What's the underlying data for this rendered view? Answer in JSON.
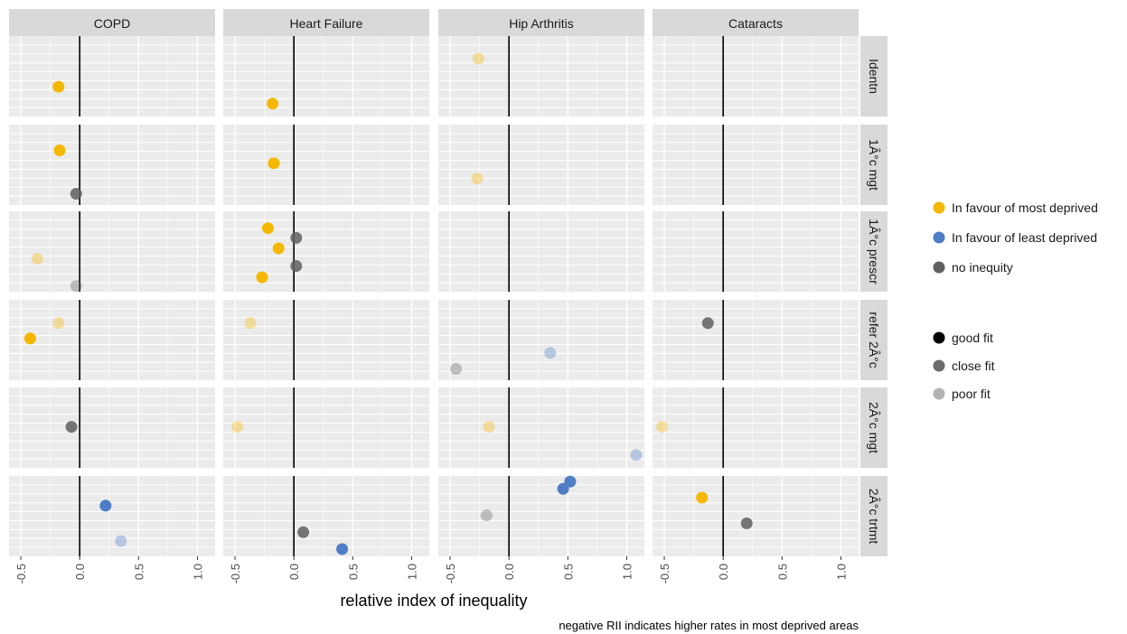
{
  "colors": {
    "panel_bg": "#ebebeb",
    "strip_bg": "#d9d9d9",
    "grid_major": "#ffffff",
    "zero_line": "#000000",
    "favour_most": "#f5b800",
    "favour_least": "#4f7dc6",
    "no_inequity": "#5f5f5f"
  },
  "chart_data": {
    "type": "scatter",
    "xlabel": "relative index of inequality",
    "caption": "negative RII indicates higher rates in most deprived areas",
    "x_ticks": [
      "-0.5",
      "0.0",
      "0.5",
      "1.0"
    ],
    "x_tick_values": [
      -0.5,
      0.0,
      0.5,
      1.0
    ],
    "xlim": [
      -0.6,
      1.15
    ],
    "reference_line_x": 0,
    "grid": true,
    "columns": [
      "COPD",
      "Heart Failure",
      "Hip Arthritis",
      "Cataracts"
    ],
    "rows": [
      "Identn",
      "1Â°c mgt",
      "1Â°c prescr",
      "refer 2Â°c",
      "2Â°c mgt",
      "2Â°c trtmt"
    ],
    "legend": {
      "placement": "right",
      "color_entries": [
        {
          "key": "most",
          "label": "In favour of most deprived"
        },
        {
          "key": "least",
          "label": "In favour of least deprived"
        },
        {
          "key": "none",
          "label": "no inequity"
        }
      ],
      "fit_entries": [
        {
          "key": "good",
          "label": "good fit"
        },
        {
          "key": "close",
          "label": "close fit"
        },
        {
          "key": "poor",
          "label": "poor fit"
        }
      ]
    },
    "fit_alpha": {
      "good": 1.0,
      "close": 0.85,
      "poor": 0.35
    },
    "points": [
      {
        "col": 0,
        "row": 0,
        "x": -0.18,
        "y": 0.63,
        "group": "most",
        "fit": "good"
      },
      {
        "col": 1,
        "row": 0,
        "x": -0.18,
        "y": 0.84,
        "group": "most",
        "fit": "good"
      },
      {
        "col": 2,
        "row": 0,
        "x": -0.26,
        "y": 0.28,
        "group": "most",
        "fit": "poor"
      },
      {
        "col": 0,
        "row": 1,
        "x": -0.17,
        "y": 0.32,
        "group": "most",
        "fit": "good"
      },
      {
        "col": 0,
        "row": 1,
        "x": -0.03,
        "y": 0.86,
        "group": "none",
        "fit": "close"
      },
      {
        "col": 1,
        "row": 1,
        "x": -0.17,
        "y": 0.48,
        "group": "most",
        "fit": "good"
      },
      {
        "col": 2,
        "row": 1,
        "x": -0.27,
        "y": 0.67,
        "group": "most",
        "fit": "poor"
      },
      {
        "col": 0,
        "row": 2,
        "x": -0.36,
        "y": 0.59,
        "group": "most",
        "fit": "poor"
      },
      {
        "col": 0,
        "row": 2,
        "x": -0.03,
        "y": 0.93,
        "group": "none",
        "fit": "poor"
      },
      {
        "col": 1,
        "row": 2,
        "x": -0.22,
        "y": 0.21,
        "group": "most",
        "fit": "good"
      },
      {
        "col": 1,
        "row": 2,
        "x": 0.02,
        "y": 0.33,
        "group": "none",
        "fit": "close"
      },
      {
        "col": 1,
        "row": 2,
        "x": -0.13,
        "y": 0.46,
        "group": "most",
        "fit": "good"
      },
      {
        "col": 1,
        "row": 2,
        "x": 0.02,
        "y": 0.68,
        "group": "none",
        "fit": "close"
      },
      {
        "col": 1,
        "row": 2,
        "x": -0.27,
        "y": 0.82,
        "group": "most",
        "fit": "good"
      },
      {
        "col": 0,
        "row": 3,
        "x": -0.18,
        "y": 0.29,
        "group": "most",
        "fit": "poor"
      },
      {
        "col": 0,
        "row": 3,
        "x": -0.42,
        "y": 0.48,
        "group": "most",
        "fit": "good"
      },
      {
        "col": 1,
        "row": 3,
        "x": -0.37,
        "y": 0.29,
        "group": "most",
        "fit": "poor"
      },
      {
        "col": 2,
        "row": 3,
        "x": 0.35,
        "y": 0.66,
        "group": "least",
        "fit": "poor"
      },
      {
        "col": 2,
        "row": 3,
        "x": -0.45,
        "y": 0.86,
        "group": "none",
        "fit": "poor"
      },
      {
        "col": 3,
        "row": 3,
        "x": -0.13,
        "y": 0.29,
        "group": "none",
        "fit": "close"
      },
      {
        "col": 0,
        "row": 4,
        "x": -0.07,
        "y": 0.49,
        "group": "none",
        "fit": "close"
      },
      {
        "col": 1,
        "row": 4,
        "x": -0.48,
        "y": 0.49,
        "group": "most",
        "fit": "poor"
      },
      {
        "col": 2,
        "row": 4,
        "x": -0.17,
        "y": 0.49,
        "group": "most",
        "fit": "poor"
      },
      {
        "col": 2,
        "row": 4,
        "x": 1.08,
        "y": 0.84,
        "group": "least",
        "fit": "poor"
      },
      {
        "col": 3,
        "row": 4,
        "x": -0.52,
        "y": 0.49,
        "group": "most",
        "fit": "poor"
      },
      {
        "col": 0,
        "row": 5,
        "x": 0.22,
        "y": 0.37,
        "group": "least",
        "fit": "good"
      },
      {
        "col": 0,
        "row": 5,
        "x": 0.35,
        "y": 0.81,
        "group": "least",
        "fit": "poor"
      },
      {
        "col": 1,
        "row": 5,
        "x": 0.08,
        "y": 0.7,
        "group": "none",
        "fit": "close"
      },
      {
        "col": 1,
        "row": 5,
        "x": 0.41,
        "y": 0.91,
        "group": "least",
        "fit": "good"
      },
      {
        "col": 2,
        "row": 5,
        "x": 0.52,
        "y": 0.07,
        "group": "least",
        "fit": "good"
      },
      {
        "col": 2,
        "row": 5,
        "x": 0.46,
        "y": 0.16,
        "group": "least",
        "fit": "good"
      },
      {
        "col": 2,
        "row": 5,
        "x": -0.19,
        "y": 0.49,
        "group": "none",
        "fit": "poor"
      },
      {
        "col": 3,
        "row": 5,
        "x": -0.18,
        "y": 0.27,
        "group": "most",
        "fit": "good"
      },
      {
        "col": 3,
        "row": 5,
        "x": 0.2,
        "y": 0.59,
        "group": "none",
        "fit": "close"
      }
    ]
  }
}
